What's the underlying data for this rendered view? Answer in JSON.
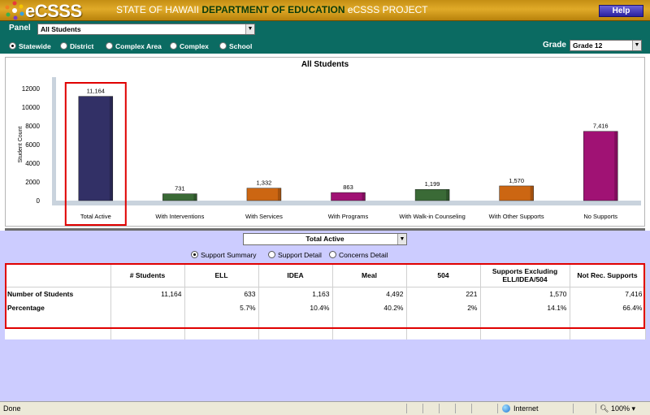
{
  "header": {
    "app_name": "eCSSS",
    "title_prefix": "STATE OF HAWAII ",
    "title_dept": "DEPARTMENT OF EDUCATION",
    "title_suffix": " eCSSS PROJECT",
    "help_label": "Help"
  },
  "filters": {
    "panel_label": "Panel",
    "panel_value": "All Students",
    "scope_options": [
      {
        "label": "Statewide",
        "selected": true
      },
      {
        "label": "District",
        "selected": false
      },
      {
        "label": "Complex Area",
        "selected": false
      },
      {
        "label": "Complex",
        "selected": false
      },
      {
        "label": "School",
        "selected": false
      }
    ],
    "grade_label": "Grade",
    "grade_value": "Grade 12"
  },
  "chart_data": {
    "type": "bar",
    "title": "All Students",
    "ylabel": "Student Count",
    "xlabel": "",
    "ylim": [
      0,
      12000
    ],
    "yticks": [
      0,
      2000,
      4000,
      6000,
      8000,
      10000,
      12000
    ],
    "grid": false,
    "categories": [
      "Total Active",
      "With Interventions",
      "With Services",
      "With Programs",
      "With Walk-in Counseling",
      "With Other Supports",
      "No Supports"
    ],
    "values": [
      11164,
      731,
      1332,
      863,
      1199,
      1570,
      7416
    ],
    "value_labels": [
      "11,164",
      "731",
      "1,332",
      "863",
      "1,199",
      "1,570",
      "7,416"
    ],
    "colors": [
      "#323066",
      "#3a6a36",
      "#cc6612",
      "#a01274",
      "#3a6a36",
      "#cc6612",
      "#a01274"
    ],
    "highlighted_category": "Total Active",
    "highlight_color": "#e00000"
  },
  "detail": {
    "view_value": "Total Active",
    "options": [
      {
        "label": "Support Summary",
        "selected": true
      },
      {
        "label": "Support Detail",
        "selected": false
      },
      {
        "label": "Concerns Detail",
        "selected": false
      }
    ]
  },
  "table": {
    "headers": [
      "",
      "# Students",
      "ELL",
      "IDEA",
      "Meal",
      "504",
      "Supports Excluding ELL/IDEA/504",
      "Not Rec. Supports"
    ],
    "rows": [
      {
        "label": "Number of Students",
        "cells": [
          "11,164",
          "633",
          "1,163",
          "4,492",
          "221",
          "1,570",
          "7,416"
        ]
      },
      {
        "label": "Percentage",
        "cells": [
          "",
          "5.7%",
          "10.4%",
          "40.2%",
          "2%",
          "14.1%",
          "66.4%"
        ]
      }
    ]
  },
  "statusbar": {
    "status": "Done",
    "zone": "Internet",
    "zoom": "100%"
  }
}
